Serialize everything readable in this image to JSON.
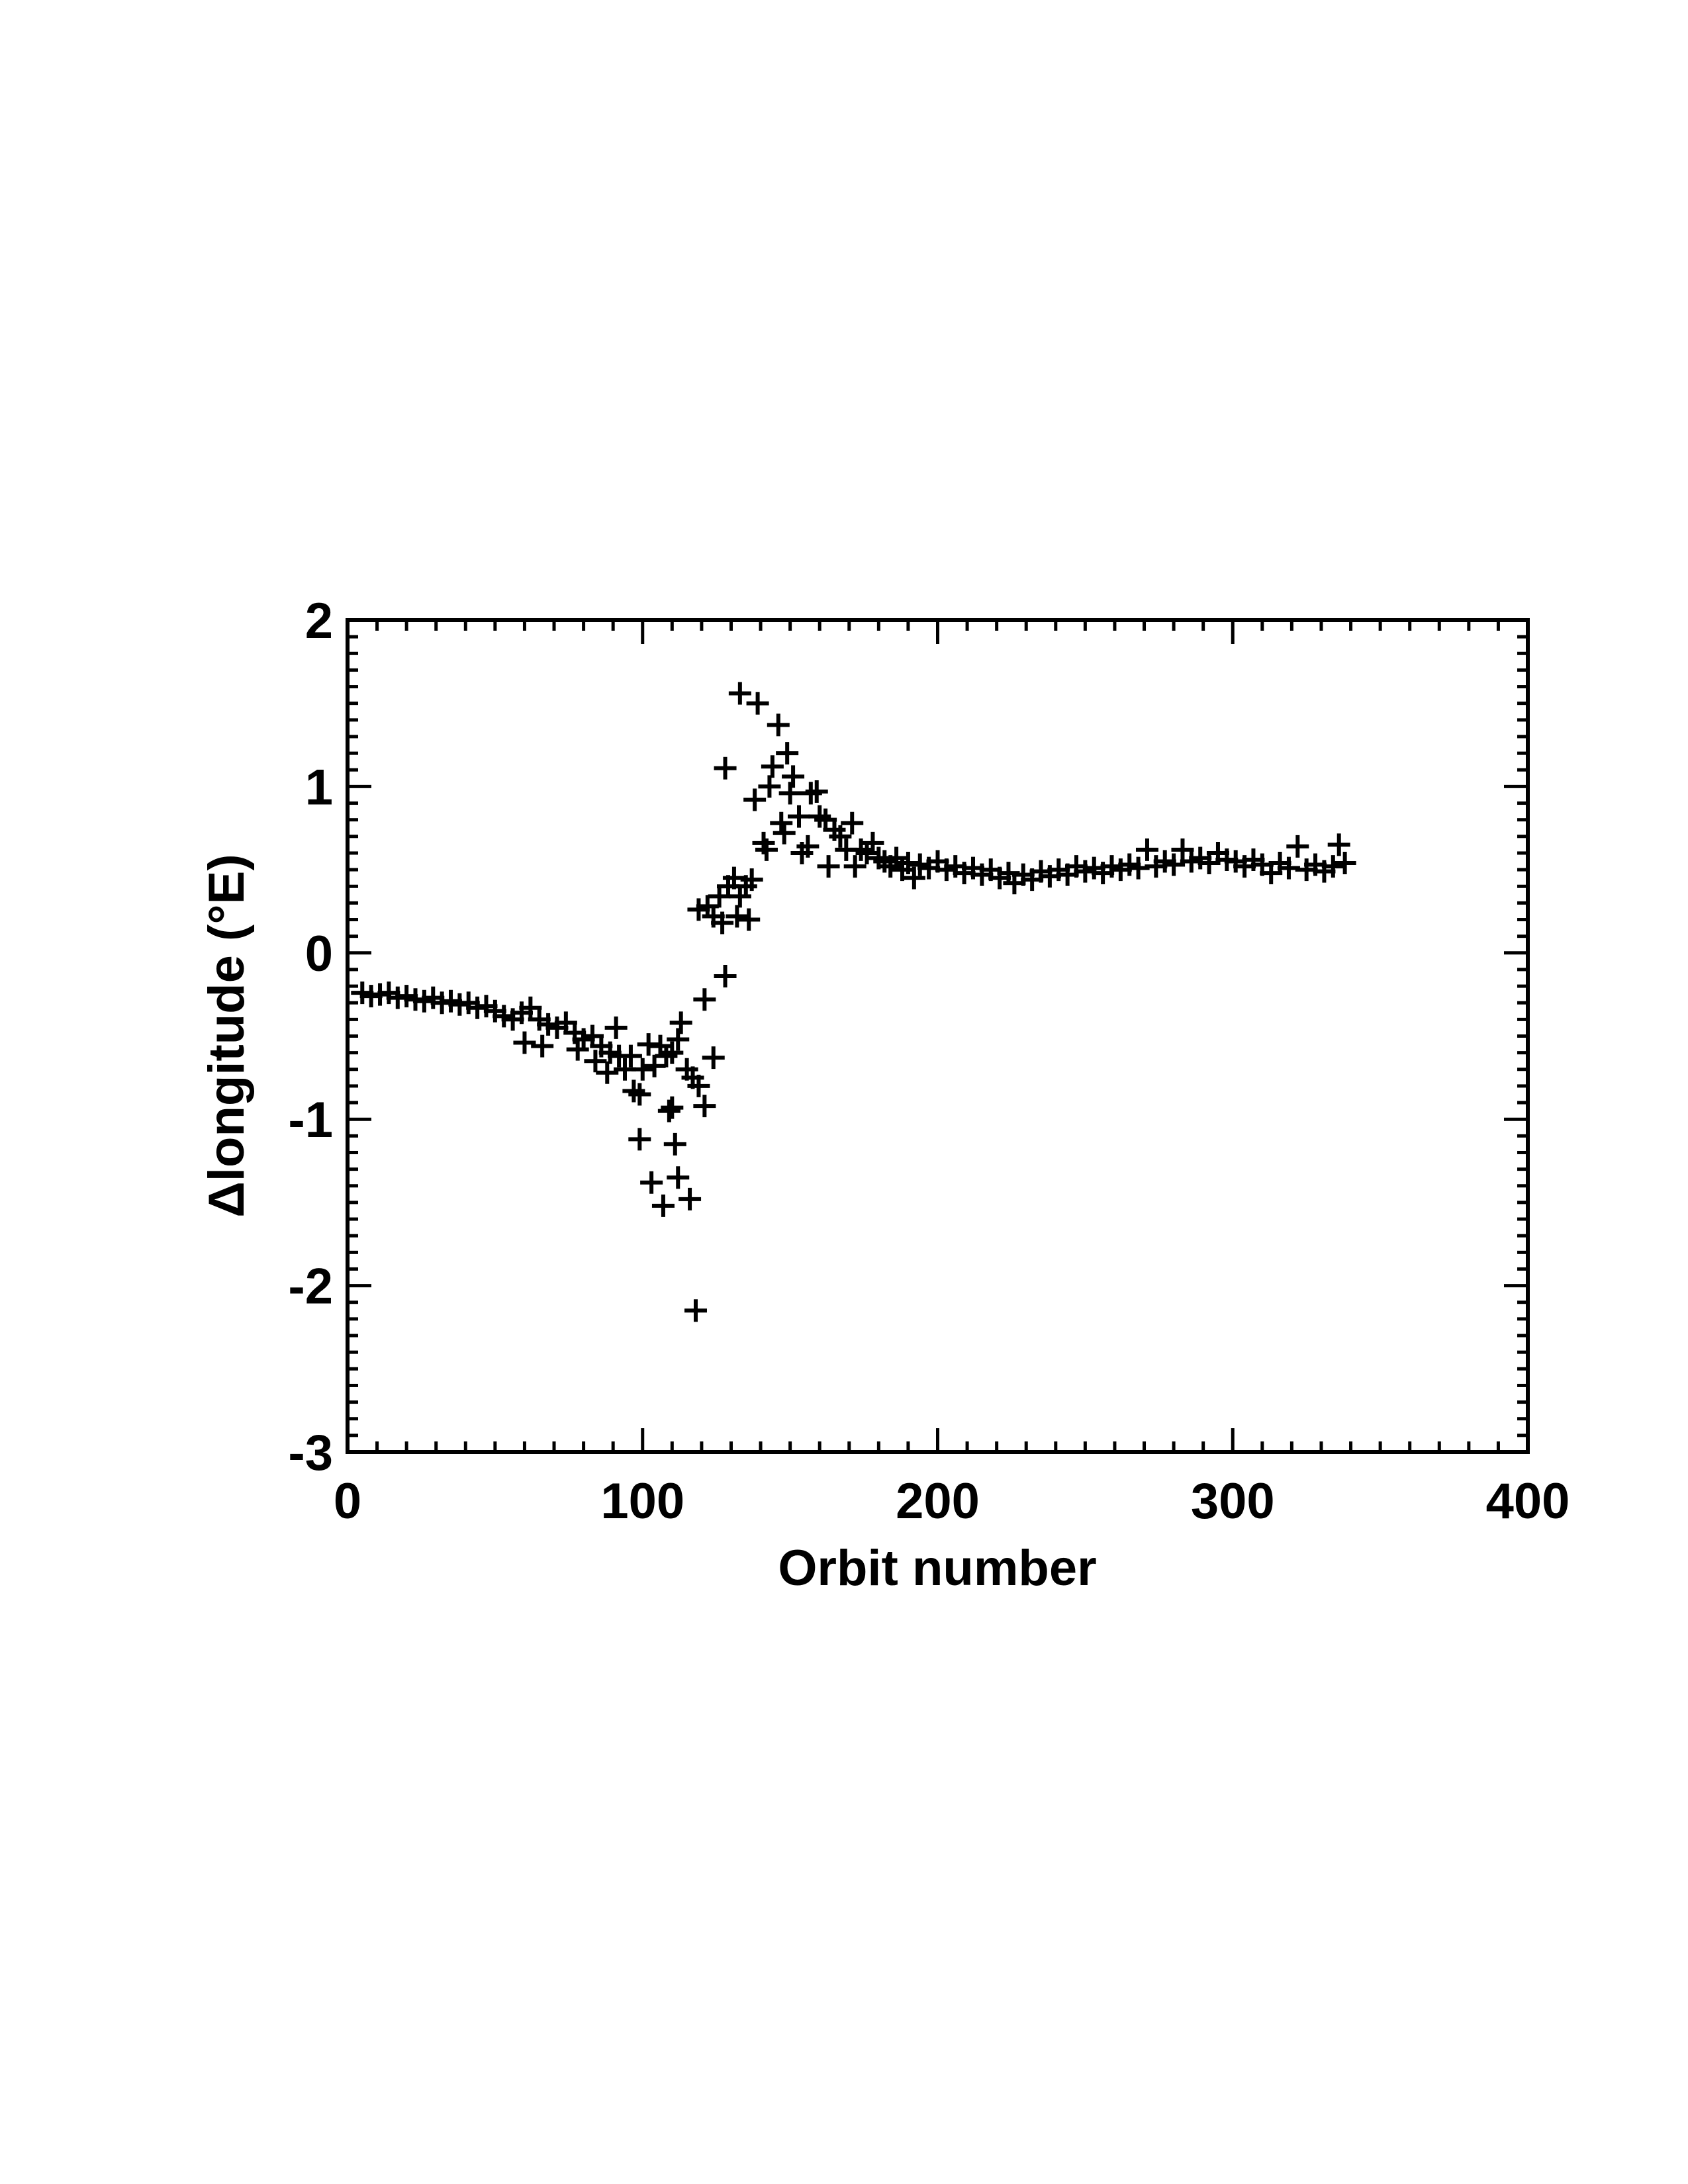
{
  "chart_data": {
    "type": "scatter",
    "title": "",
    "xlabel": "Orbit number",
    "ylabel": "Δlongitude (°E)",
    "xlim": [
      0,
      400
    ],
    "ylim": [
      -3,
      2
    ],
    "xticks": [
      "0",
      "100",
      "200",
      "300",
      "400"
    ],
    "yticks": [
      "-3",
      "-2",
      "-1",
      "0",
      "1",
      "2"
    ],
    "grid": false,
    "marker": "plus",
    "color": "#000000",
    "series": [
      {
        "name": "data",
        "x": [
          5,
          8,
          11,
          14,
          17,
          20,
          23,
          26,
          29,
          32,
          35,
          38,
          41,
          44,
          47,
          50,
          53,
          56,
          59,
          62,
          65,
          68,
          71,
          74,
          77,
          80,
          83,
          86,
          89,
          92,
          60,
          66,
          78,
          84,
          88,
          91,
          94,
          96,
          97,
          99,
          100,
          102,
          104,
          106,
          108,
          109,
          110,
          112,
          113,
          115,
          117,
          119,
          121,
          121,
          124,
          99,
          103,
          107,
          111,
          112,
          116,
          118,
          110,
          128,
          119,
          122,
          124,
          126,
          127,
          129,
          131,
          132,
          133,
          135,
          136,
          137,
          128,
          133,
          139,
          138,
          141,
          142,
          143,
          144,
          146,
          147,
          148,
          149,
          150,
          151,
          153,
          154,
          156,
          157,
          159,
          160,
          162,
          163,
          165,
          167,
          169,
          171,
          172,
          174,
          176,
          178,
          180,
          182,
          184,
          186,
          188,
          190,
          192,
          194,
          197,
          200,
          203,
          206,
          209,
          212,
          215,
          218,
          221,
          224,
          226,
          229,
          232,
          235,
          238,
          241,
          244,
          247,
          250,
          253,
          256,
          259,
          262,
          265,
          268,
          271,
          274,
          277,
          280,
          283,
          286,
          289,
          292,
          295,
          298,
          301,
          304,
          307,
          310,
          313,
          316,
          319,
          322,
          325,
          328,
          331,
          334,
          336,
          338
        ],
        "y": [
          -0.24,
          -0.26,
          -0.25,
          -0.24,
          -0.27,
          -0.26,
          -0.28,
          -0.29,
          -0.27,
          -0.3,
          -0.29,
          -0.31,
          -0.3,
          -0.33,
          -0.32,
          -0.35,
          -0.38,
          -0.4,
          -0.36,
          -0.33,
          -0.4,
          -0.43,
          -0.45,
          -0.42,
          -0.48,
          -0.52,
          -0.5,
          -0.56,
          -0.6,
          -0.62,
          -0.54,
          -0.56,
          -0.58,
          -0.65,
          -0.72,
          -0.45,
          -0.7,
          -0.62,
          -0.83,
          -0.85,
          -0.7,
          -0.55,
          -0.68,
          -0.56,
          -0.62,
          -0.95,
          -0.6,
          -0.52,
          -0.42,
          -0.7,
          -0.75,
          -0.8,
          -0.92,
          -0.28,
          -0.63,
          -1.12,
          -1.38,
          -1.52,
          -1.15,
          -1.35,
          -1.48,
          -2.15,
          -0.93,
          -0.14,
          0.26,
          0.28,
          0.22,
          0.34,
          0.18,
          0.4,
          0.45,
          0.22,
          0.34,
          0.4,
          0.2,
          0.44,
          1.11,
          1.56,
          1.5,
          0.92,
          0.66,
          0.62,
          1.0,
          1.12,
          1.37,
          0.78,
          0.72,
          1.2,
          0.96,
          1.06,
          0.82,
          0.6,
          0.64,
          0.96,
          0.97,
          0.82,
          0.8,
          0.52,
          0.74,
          0.7,
          0.62,
          0.78,
          0.52,
          0.62,
          0.6,
          0.66,
          0.57,
          0.55,
          0.52,
          0.57,
          0.5,
          0.54,
          0.45,
          0.53,
          0.51,
          0.55,
          0.5,
          0.52,
          0.48,
          0.51,
          0.47,
          0.5,
          0.45,
          0.48,
          0.42,
          0.47,
          0.44,
          0.49,
          0.46,
          0.5,
          0.47,
          0.52,
          0.49,
          0.51,
          0.48,
          0.52,
          0.5,
          0.53,
          0.51,
          0.62,
          0.52,
          0.55,
          0.53,
          0.62,
          0.55,
          0.57,
          0.54,
          0.6,
          0.56,
          0.55,
          0.52,
          0.56,
          0.53,
          0.48,
          0.54,
          0.51,
          0.64,
          0.5,
          0.53,
          0.49,
          0.52,
          0.65,
          0.54
        ]
      }
    ]
  }
}
